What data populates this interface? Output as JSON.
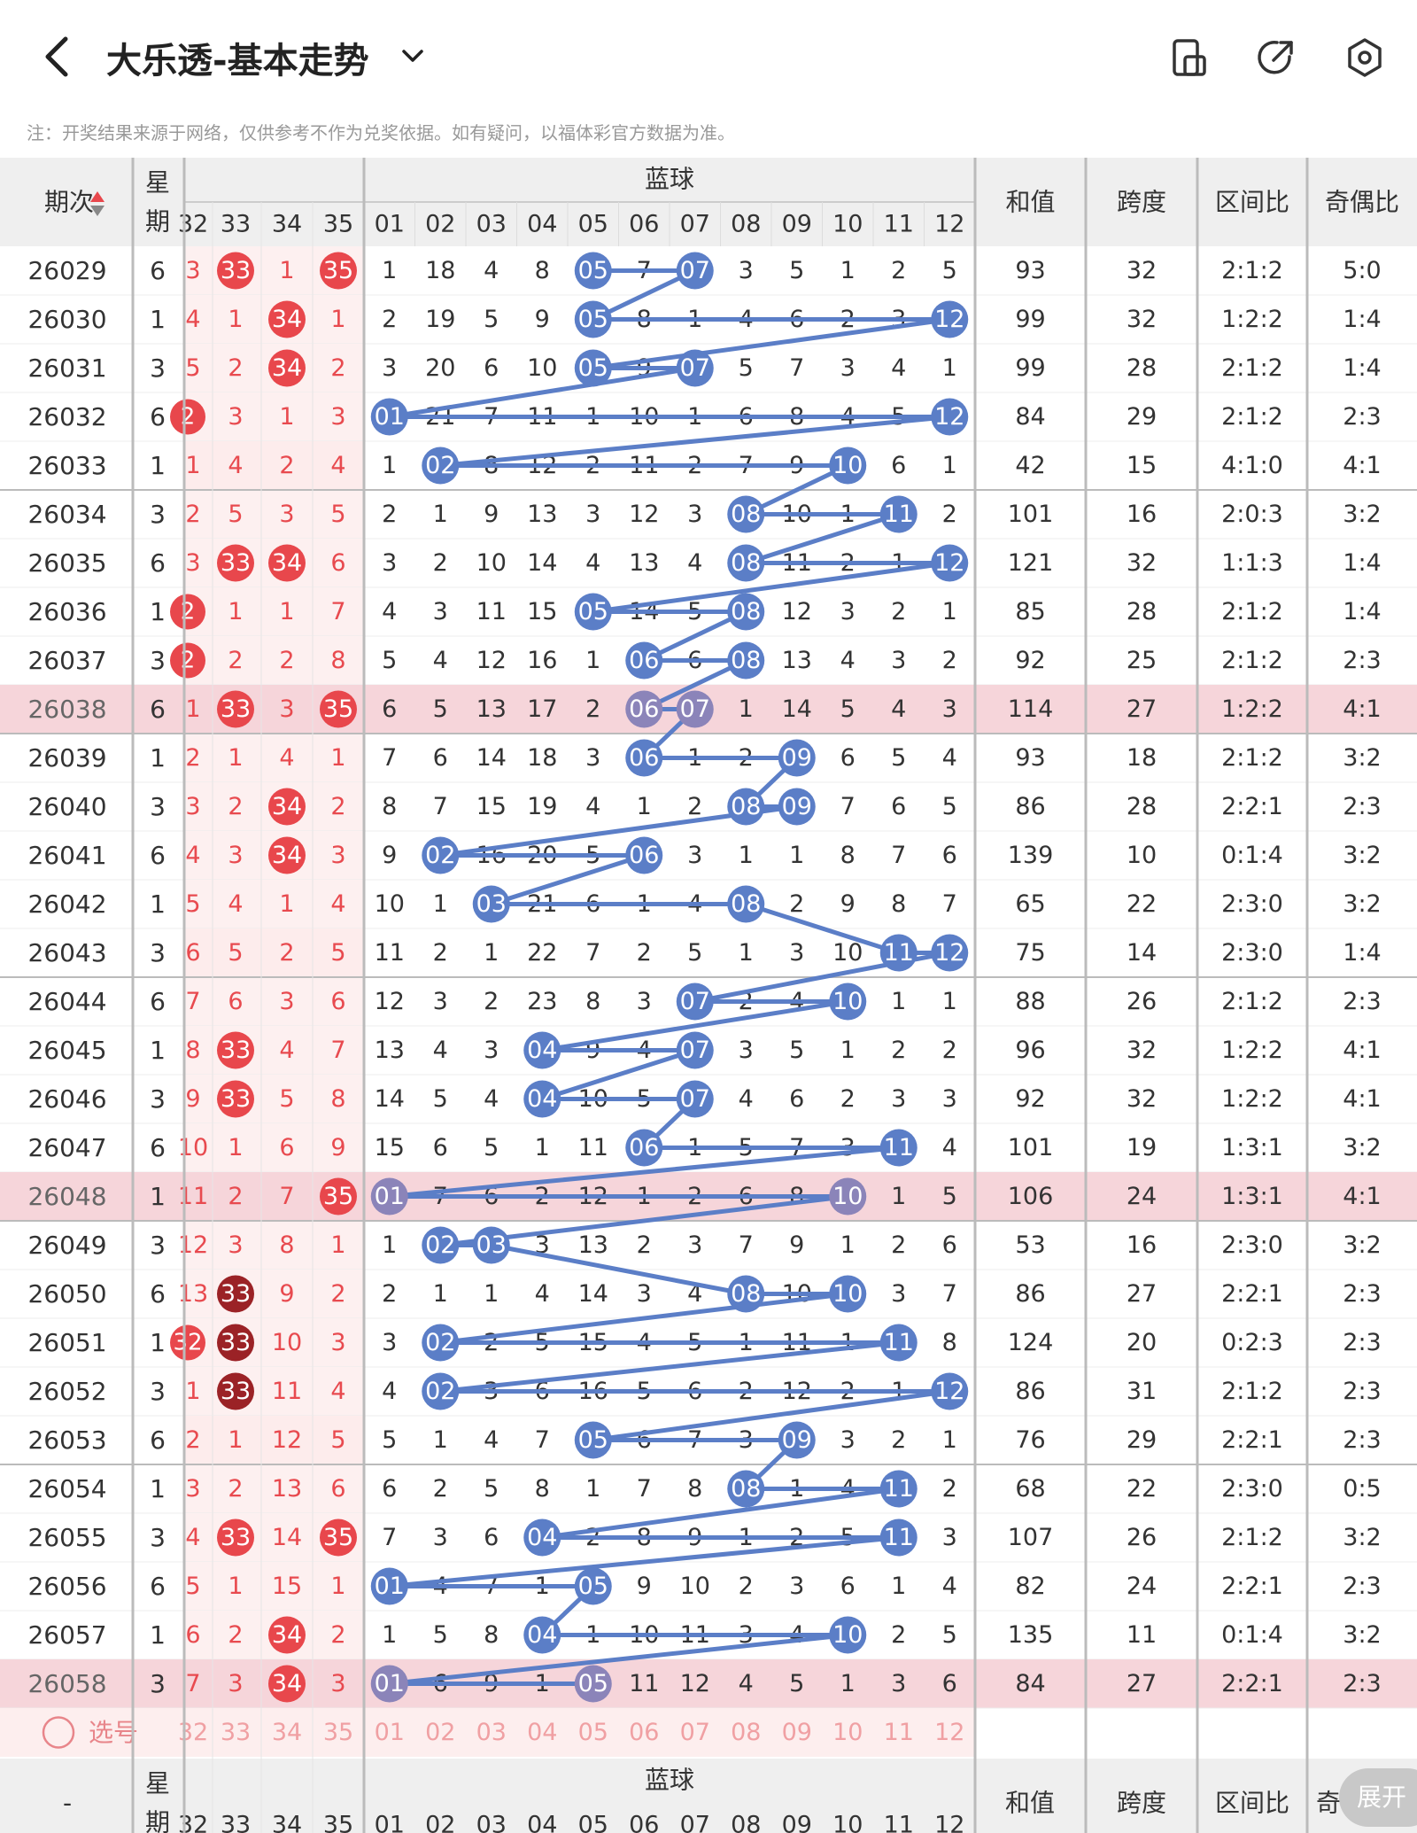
{
  "header": {
    "title": "大乐透-基本走势",
    "icons": [
      "back-icon",
      "chevron-down-icon",
      "phone-rotate-icon",
      "share-icon",
      "settings-icon"
    ]
  },
  "notice": "注：开奖结果来源于网络，仅供参考不作为兑奖依据。如有疑问，以福体彩官方数据为准。",
  "table": {
    "col_issue": "期次",
    "col_week": "星期",
    "group_blue": "蓝球",
    "col_sum": "和值",
    "col_span": "跨度",
    "col_zone": "区间比",
    "col_oddeven": "奇偶比",
    "front_headers": [
      "32",
      "33",
      "34",
      "35"
    ],
    "blue_headers": [
      "01",
      "02",
      "03",
      "04",
      "05",
      "06",
      "07",
      "08",
      "09",
      "10",
      "11",
      "12"
    ],
    "select_label": "选号",
    "bottom_issue": "-",
    "bottom_oddeven": "奇",
    "highlight_rows": [
      "26038",
      "26048",
      "26058"
    ],
    "rows": [
      {
        "issue": "26029",
        "week": "6",
        "front": [
          "3",
          "33",
          "1",
          "35"
        ],
        "fhit": [
          0,
          1,
          0,
          1
        ],
        "blue": [
          "1",
          "18",
          "4",
          "8",
          "05",
          "7",
          "07",
          "3",
          "5",
          "1",
          "2",
          "5"
        ],
        "bhit": [
          5,
          7
        ],
        "sum": "93",
        "span": "32",
        "zone": "2:1:2",
        "oe": "5:0"
      },
      {
        "issue": "26030",
        "week": "1",
        "front": [
          "4",
          "1",
          "34",
          "1"
        ],
        "fhit": [
          0,
          0,
          1,
          0
        ],
        "blue": [
          "2",
          "19",
          "5",
          "9",
          "05",
          "8",
          "1",
          "4",
          "6",
          "2",
          "3",
          "12"
        ],
        "bhit": [
          5,
          12
        ],
        "sum": "99",
        "span": "32",
        "zone": "1:2:2",
        "oe": "1:4"
      },
      {
        "issue": "26031",
        "week": "3",
        "front": [
          "5",
          "2",
          "34",
          "2"
        ],
        "fhit": [
          0,
          0,
          1,
          0
        ],
        "blue": [
          "3",
          "20",
          "6",
          "10",
          "05",
          "9",
          "07",
          "5",
          "7",
          "3",
          "4",
          "1"
        ],
        "bhit": [
          5,
          7
        ],
        "sum": "99",
        "span": "28",
        "zone": "2:1:2",
        "oe": "1:4"
      },
      {
        "issue": "26032",
        "week": "6",
        "front": [
          "2",
          "3",
          "1",
          "3"
        ],
        "fhit": [
          1,
          0,
          0,
          0
        ],
        "blue": [
          "01",
          "21",
          "7",
          "11",
          "1",
          "10",
          "1",
          "6",
          "8",
          "4",
          "5",
          "12"
        ],
        "bhit": [
          1,
          12
        ],
        "sum": "84",
        "span": "29",
        "zone": "2:1:2",
        "oe": "2:3"
      },
      {
        "issue": "26033",
        "week": "1",
        "front": [
          "1",
          "4",
          "2",
          "4"
        ],
        "fhit": [
          0,
          0,
          0,
          0
        ],
        "blue": [
          "1",
          "02",
          "8",
          "12",
          "2",
          "11",
          "2",
          "7",
          "9",
          "10",
          "6",
          "1"
        ],
        "bhit": [
          2,
          10
        ],
        "sum": "42",
        "span": "15",
        "zone": "4:1:0",
        "oe": "4:1"
      },
      {
        "issue": "26034",
        "week": "3",
        "front": [
          "2",
          "5",
          "3",
          "5"
        ],
        "fhit": [
          0,
          0,
          0,
          0
        ],
        "blue": [
          "2",
          "1",
          "9",
          "13",
          "3",
          "12",
          "3",
          "08",
          "10",
          "1",
          "11",
          "2"
        ],
        "bhit": [
          8,
          11
        ],
        "sum": "101",
        "span": "16",
        "zone": "2:0:3",
        "oe": "3:2"
      },
      {
        "issue": "26035",
        "week": "6",
        "front": [
          "3",
          "33",
          "34",
          "6"
        ],
        "fhit": [
          0,
          1,
          1,
          0
        ],
        "blue": [
          "3",
          "2",
          "10",
          "14",
          "4",
          "13",
          "4",
          "08",
          "11",
          "2",
          "1",
          "12"
        ],
        "bhit": [
          8,
          12
        ],
        "sum": "121",
        "span": "32",
        "zone": "1:1:3",
        "oe": "1:4"
      },
      {
        "issue": "26036",
        "week": "1",
        "front": [
          "2",
          "1",
          "1",
          "7"
        ],
        "fhit": [
          1,
          0,
          0,
          0
        ],
        "blue": [
          "4",
          "3",
          "11",
          "15",
          "05",
          "14",
          "5",
          "08",
          "12",
          "3",
          "2",
          "1"
        ],
        "bhit": [
          5,
          8
        ],
        "sum": "85",
        "span": "28",
        "zone": "2:1:2",
        "oe": "1:4"
      },
      {
        "issue": "26037",
        "week": "3",
        "front": [
          "2",
          "2",
          "2",
          "8"
        ],
        "fhit": [
          1,
          0,
          0,
          0
        ],
        "blue": [
          "5",
          "4",
          "12",
          "16",
          "1",
          "06",
          "6",
          "08",
          "13",
          "4",
          "3",
          "2"
        ],
        "bhit": [
          6,
          8
        ],
        "sum": "92",
        "span": "25",
        "zone": "2:1:2",
        "oe": "2:3"
      },
      {
        "issue": "26038",
        "week": "6",
        "front": [
          "1",
          "33",
          "3",
          "35"
        ],
        "fhit": [
          0,
          1,
          0,
          1
        ],
        "blue": [
          "6",
          "5",
          "13",
          "17",
          "2",
          "06",
          "07",
          "1",
          "14",
          "5",
          "4",
          "3"
        ],
        "bhit": [
          6,
          7
        ],
        "sum": "114",
        "span": "27",
        "zone": "1:2:2",
        "oe": "4:1"
      },
      {
        "issue": "26039",
        "week": "1",
        "front": [
          "2",
          "1",
          "4",
          "1"
        ],
        "fhit": [
          0,
          0,
          0,
          0
        ],
        "blue": [
          "7",
          "6",
          "14",
          "18",
          "3",
          "06",
          "1",
          "2",
          "09",
          "6",
          "5",
          "4"
        ],
        "bhit": [
          6,
          9
        ],
        "sum": "93",
        "span": "18",
        "zone": "2:1:2",
        "oe": "3:2"
      },
      {
        "issue": "26040",
        "week": "3",
        "front": [
          "3",
          "2",
          "34",
          "2"
        ],
        "fhit": [
          0,
          0,
          1,
          0
        ],
        "blue": [
          "8",
          "7",
          "15",
          "19",
          "4",
          "1",
          "2",
          "08",
          "09",
          "7",
          "6",
          "5"
        ],
        "bhit": [
          8,
          9
        ],
        "sum": "86",
        "span": "28",
        "zone": "2:2:1",
        "oe": "2:3"
      },
      {
        "issue": "26041",
        "week": "6",
        "front": [
          "4",
          "3",
          "34",
          "3"
        ],
        "fhit": [
          0,
          0,
          1,
          0
        ],
        "blue": [
          "9",
          "02",
          "16",
          "20",
          "5",
          "06",
          "3",
          "1",
          "1",
          "8",
          "7",
          "6"
        ],
        "bhit": [
          2,
          6
        ],
        "sum": "139",
        "span": "10",
        "zone": "0:1:4",
        "oe": "3:2"
      },
      {
        "issue": "26042",
        "week": "1",
        "front": [
          "5",
          "4",
          "1",
          "4"
        ],
        "fhit": [
          0,
          0,
          0,
          0
        ],
        "blue": [
          "10",
          "1",
          "03",
          "21",
          "6",
          "1",
          "4",
          "08",
          "2",
          "9",
          "8",
          "7"
        ],
        "bhit": [
          3,
          8
        ],
        "sum": "65",
        "span": "22",
        "zone": "2:3:0",
        "oe": "3:2"
      },
      {
        "issue": "26043",
        "week": "3",
        "front": [
          "6",
          "5",
          "2",
          "5"
        ],
        "fhit": [
          0,
          0,
          0,
          0
        ],
        "blue": [
          "11",
          "2",
          "1",
          "22",
          "7",
          "2",
          "5",
          "1",
          "3",
          "10",
          "11",
          "12"
        ],
        "bhit": [
          11,
          12
        ],
        "sum": "75",
        "span": "14",
        "zone": "2:3:0",
        "oe": "1:4"
      },
      {
        "issue": "26044",
        "week": "6",
        "front": [
          "7",
          "6",
          "3",
          "6"
        ],
        "fhit": [
          0,
          0,
          0,
          0
        ],
        "blue": [
          "12",
          "3",
          "2",
          "23",
          "8",
          "3",
          "07",
          "2",
          "4",
          "10",
          "1",
          "1"
        ],
        "bhit": [
          7,
          10
        ],
        "sum": "88",
        "span": "26",
        "zone": "2:1:2",
        "oe": "2:3"
      },
      {
        "issue": "26045",
        "week": "1",
        "front": [
          "8",
          "33",
          "4",
          "7"
        ],
        "fhit": [
          0,
          1,
          0,
          0
        ],
        "blue": [
          "13",
          "4",
          "3",
          "04",
          "9",
          "4",
          "07",
          "3",
          "5",
          "1",
          "2",
          "2"
        ],
        "bhit": [
          4,
          7
        ],
        "sum": "96",
        "span": "32",
        "zone": "1:2:2",
        "oe": "4:1"
      },
      {
        "issue": "26046",
        "week": "3",
        "front": [
          "9",
          "33",
          "5",
          "8"
        ],
        "fhit": [
          0,
          1,
          0,
          0
        ],
        "blue": [
          "14",
          "5",
          "4",
          "04",
          "10",
          "5",
          "07",
          "4",
          "6",
          "2",
          "3",
          "3"
        ],
        "bhit": [
          4,
          7
        ],
        "sum": "92",
        "span": "32",
        "zone": "1:2:2",
        "oe": "4:1"
      },
      {
        "issue": "26047",
        "week": "6",
        "front": [
          "10",
          "1",
          "6",
          "9"
        ],
        "fhit": [
          0,
          0,
          0,
          0
        ],
        "blue": [
          "15",
          "6",
          "5",
          "1",
          "11",
          "06",
          "1",
          "5",
          "7",
          "3",
          "11",
          "4"
        ],
        "bhit": [
          6,
          11
        ],
        "sum": "101",
        "span": "19",
        "zone": "1:3:1",
        "oe": "3:2"
      },
      {
        "issue": "26048",
        "week": "1",
        "front": [
          "11",
          "2",
          "7",
          "35"
        ],
        "fhit": [
          0,
          0,
          0,
          1
        ],
        "blue": [
          "01",
          "7",
          "6",
          "2",
          "12",
          "1",
          "2",
          "6",
          "8",
          "10",
          "1",
          "5"
        ],
        "bhit": [
          1,
          10
        ],
        "sum": "106",
        "span": "24",
        "zone": "1:3:1",
        "oe": "4:1"
      },
      {
        "issue": "26049",
        "week": "3",
        "front": [
          "12",
          "3",
          "8",
          "1"
        ],
        "fhit": [
          0,
          0,
          0,
          0
        ],
        "blue": [
          "1",
          "02",
          "03",
          "3",
          "13",
          "2",
          "3",
          "7",
          "9",
          "1",
          "2",
          "6"
        ],
        "bhit": [
          2,
          3
        ],
        "sum": "53",
        "span": "16",
        "zone": "2:3:0",
        "oe": "3:2"
      },
      {
        "issue": "26050",
        "week": "6",
        "front": [
          "13",
          "33",
          "9",
          "2"
        ],
        "fhit": [
          0,
          2,
          0,
          0
        ],
        "blue": [
          "2",
          "1",
          "1",
          "4",
          "14",
          "3",
          "4",
          "08",
          "10",
          "10",
          "3",
          "7"
        ],
        "bhit": [
          8,
          10
        ],
        "sum": "86",
        "span": "27",
        "zone": "2:2:1",
        "oe": "2:3"
      },
      {
        "issue": "26051",
        "week": "1",
        "front": [
          "32",
          "33",
          "10",
          "3"
        ],
        "fhit": [
          1,
          2,
          0,
          0
        ],
        "blue": [
          "3",
          "02",
          "2",
          "5",
          "15",
          "4",
          "5",
          "1",
          "11",
          "1",
          "11",
          "8"
        ],
        "bhit": [
          2,
          11
        ],
        "sum": "124",
        "span": "20",
        "zone": "0:2:3",
        "oe": "2:3"
      },
      {
        "issue": "26052",
        "week": "3",
        "front": [
          "1",
          "33",
          "11",
          "4"
        ],
        "fhit": [
          0,
          2,
          0,
          0
        ],
        "blue": [
          "4",
          "02",
          "3",
          "6",
          "16",
          "5",
          "6",
          "2",
          "12",
          "2",
          "1",
          "12"
        ],
        "bhit": [
          2,
          12
        ],
        "sum": "86",
        "span": "31",
        "zone": "2:1:2",
        "oe": "2:3"
      },
      {
        "issue": "26053",
        "week": "6",
        "front": [
          "2",
          "1",
          "12",
          "5"
        ],
        "fhit": [
          0,
          0,
          0,
          0
        ],
        "blue": [
          "5",
          "1",
          "4",
          "7",
          "05",
          "6",
          "7",
          "3",
          "09",
          "3",
          "2",
          "1"
        ],
        "bhit": [
          5,
          9
        ],
        "sum": "76",
        "span": "29",
        "zone": "2:2:1",
        "oe": "2:3"
      },
      {
        "issue": "26054",
        "week": "1",
        "front": [
          "3",
          "2",
          "13",
          "6"
        ],
        "fhit": [
          0,
          0,
          0,
          0
        ],
        "blue": [
          "6",
          "2",
          "5",
          "8",
          "1",
          "7",
          "8",
          "08",
          "1",
          "4",
          "11",
          "2"
        ],
        "bhit": [
          8,
          11
        ],
        "sum": "68",
        "span": "22",
        "zone": "2:3:0",
        "oe": "0:5"
      },
      {
        "issue": "26055",
        "week": "3",
        "front": [
          "4",
          "33",
          "14",
          "35"
        ],
        "fhit": [
          0,
          1,
          0,
          1
        ],
        "blue": [
          "7",
          "3",
          "6",
          "04",
          "2",
          "8",
          "9",
          "1",
          "2",
          "5",
          "11",
          "3"
        ],
        "bhit": [
          4,
          11
        ],
        "sum": "107",
        "span": "26",
        "zone": "2:1:2",
        "oe": "3:2"
      },
      {
        "issue": "26056",
        "week": "6",
        "front": [
          "5",
          "1",
          "15",
          "1"
        ],
        "fhit": [
          0,
          0,
          0,
          0
        ],
        "blue": [
          "01",
          "4",
          "7",
          "1",
          "05",
          "9",
          "10",
          "2",
          "3",
          "6",
          "1",
          "4"
        ],
        "bhit": [
          1,
          5
        ],
        "sum": "82",
        "span": "24",
        "zone": "2:2:1",
        "oe": "2:3"
      },
      {
        "issue": "26057",
        "week": "1",
        "front": [
          "6",
          "2",
          "34",
          "2"
        ],
        "fhit": [
          0,
          0,
          1,
          0
        ],
        "blue": [
          "1",
          "5",
          "8",
          "04",
          "1",
          "10",
          "11",
          "3",
          "4",
          "10",
          "2",
          "5"
        ],
        "bhit": [
          4,
          10
        ],
        "sum": "135",
        "span": "11",
        "zone": "0:1:4",
        "oe": "3:2"
      },
      {
        "issue": "26058",
        "week": "3",
        "front": [
          "7",
          "3",
          "34",
          "3"
        ],
        "fhit": [
          0,
          0,
          1,
          0
        ],
        "blue": [
          "01",
          "6",
          "9",
          "1",
          "05",
          "11",
          "12",
          "4",
          "5",
          "1",
          "3",
          "6"
        ],
        "bhit": [
          1,
          5
        ],
        "sum": "84",
        "span": "27",
        "zone": "2:2:1",
        "oe": "2:3"
      }
    ]
  },
  "fab_label": "展开",
  "colors": {
    "blue_ball": "#5b7ec7",
    "blue_ball_hl": "#8b84b9",
    "red_ball": "#e8474c",
    "dark_red_ball": "#9b2226",
    "row_highlight": "#f6d5da",
    "front_bg": "#fdf0f0",
    "header_bg": "#efefef",
    "red_text": "#e84a4f"
  }
}
